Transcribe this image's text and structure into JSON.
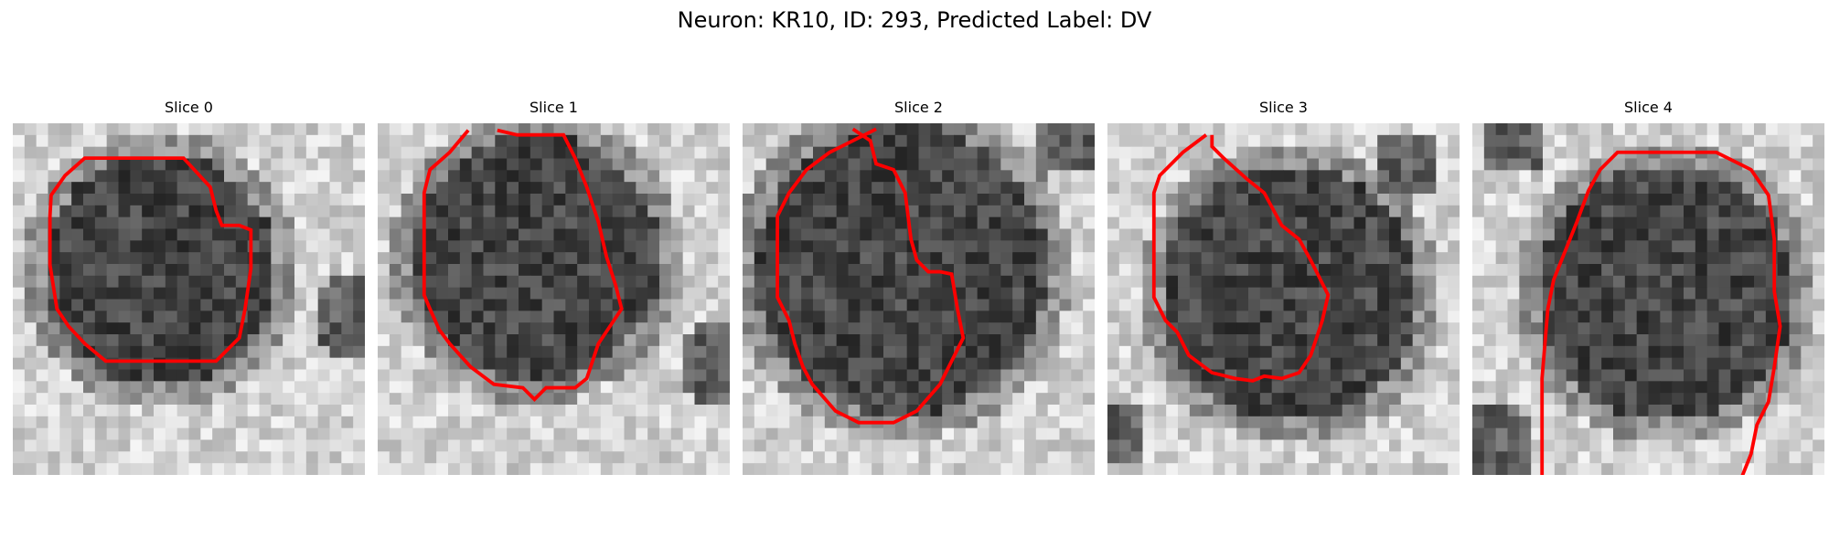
{
  "figure": {
    "title": "Neuron: KR10, ID: 293, Predicted Label: DV"
  },
  "panels": [
    {
      "title": "Slice 0"
    },
    {
      "title": "Slice 1"
    },
    {
      "title": "Slice 2"
    },
    {
      "title": "Slice 3"
    },
    {
      "title": "Slice 4"
    }
  ],
  "colors": {
    "contour": "#ff0000",
    "dark_tissue": "#1a1a1a",
    "light_background": "#dcdcdc"
  },
  "icons": {
    "contour": "red-segmentation-outline"
  }
}
